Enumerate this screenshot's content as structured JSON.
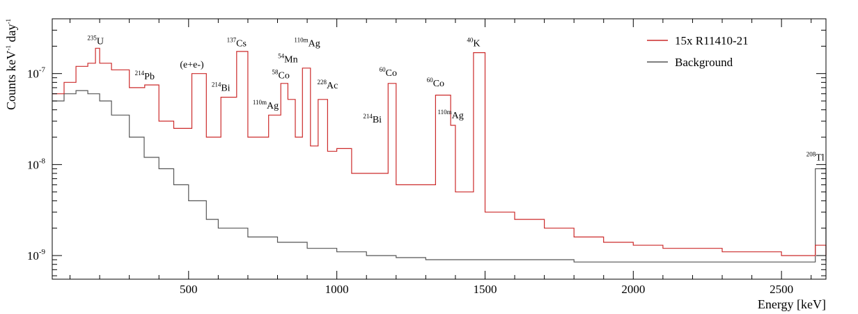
{
  "chart_data": {
    "type": "line",
    "title": "",
    "xlabel": "Energy [keV]",
    "ylabel": "Counts keV-1 day-1",
    "ylabel_parts": {
      "base1": "Counts keV",
      "exp1": "-1",
      "base2": " day",
      "exp2": "-1"
    },
    "xlim": [
      40,
      2650
    ],
    "ylim": [
      5.5e-10,
      4e-07
    ],
    "log_y": true,
    "grid": false,
    "legend_position": "top-right",
    "x_ticks": [
      500,
      1000,
      1500,
      2000,
      2500
    ],
    "x_tick_labels": [
      "500",
      "1000",
      "1500",
      "2000",
      "2500"
    ],
    "y_ticks": [
      1e-09,
      1e-08,
      1e-07
    ],
    "y_tick_labels": [
      {
        "base": "10",
        "exp": "-9"
      },
      {
        "base": "10",
        "exp": "-8"
      },
      {
        "base": "10",
        "exp": "-7"
      }
    ],
    "colors": {
      "series1": "#cc2a2a",
      "series2": "#555555"
    },
    "series": [
      {
        "name": "15x R11410-21",
        "x": [
          40,
          80,
          120,
          160,
          186,
          200,
          240,
          300,
          352,
          400,
          450,
          511,
          560,
          609,
          662,
          700,
          770,
          811,
          835,
          860,
          884,
          911,
          937,
          969,
          1000,
          1050,
          1120,
          1173,
          1200,
          1250,
          1333,
          1384,
          1400,
          1461,
          1500,
          1600,
          1700,
          1800,
          1900,
          2000,
          2100,
          2200,
          2300,
          2400,
          2500,
          2614,
          2650
        ],
        "values": [
          6e-08,
          8e-08,
          1.2e-07,
          1.3e-07,
          1.9e-07,
          1.3e-07,
          1.1e-07,
          7e-08,
          7.5e-08,
          3e-08,
          2.5e-08,
          1e-07,
          2e-08,
          5.5e-08,
          1.75e-07,
          2e-08,
          3.5e-08,
          7.8e-08,
          5.2e-08,
          2e-08,
          1.15e-07,
          1.6e-08,
          5.2e-08,
          1.4e-08,
          1.5e-08,
          8e-09,
          8e-09,
          7.8e-08,
          6e-09,
          6e-09,
          5.8e-08,
          2.7e-08,
          5e-09,
          1.7e-07,
          3e-09,
          2.5e-09,
          2e-09,
          1.6e-09,
          1.4e-09,
          1.3e-09,
          1.2e-09,
          1.2e-09,
          1.1e-09,
          1.1e-09,
          1e-09,
          1.3e-09,
          1e-09
        ]
      },
      {
        "name": "Background",
        "x": [
          40,
          80,
          120,
          160,
          200,
          240,
          300,
          350,
          400,
          450,
          500,
          560,
          600,
          700,
          800,
          900,
          1000,
          1100,
          1200,
          1300,
          1400,
          1500,
          1600,
          1700,
          1800,
          1900,
          2000,
          2100,
          2200,
          2300,
          2400,
          2500,
          2614,
          2650
        ],
        "values": [
          5e-08,
          6e-08,
          6.5e-08,
          6e-08,
          5e-08,
          3.5e-08,
          2e-08,
          1.2e-08,
          9e-09,
          6e-09,
          4e-09,
          2.5e-09,
          2e-09,
          1.6e-09,
          1.4e-09,
          1.2e-09,
          1.1e-09,
          1e-09,
          9.5e-10,
          9e-10,
          9e-10,
          9e-10,
          9e-10,
          9e-10,
          8.5e-10,
          8.5e-10,
          8.5e-10,
          8.5e-10,
          8.5e-10,
          8.5e-10,
          8.5e-10,
          8.5e-10,
          9e-09,
          8.5e-10
        ]
      }
    ],
    "annotations": [
      {
        "sup": "235",
        "text": "U",
        "x": 186,
        "y": 1.9e-07
      },
      {
        "sup": "214",
        "text": "Pb",
        "x": 352,
        "y": 7.8e-08
      },
      {
        "sup": "",
        "text": "(e+e-)",
        "x": 511,
        "y": 1.05e-07
      },
      {
        "sup": "214",
        "text": "Bi",
        "x": 609,
        "y": 5.8e-08
      },
      {
        "sup": "137",
        "text": "Cs",
        "x": 662,
        "y": 1.8e-07
      },
      {
        "sup": "58",
        "text": "Co",
        "x": 811,
        "y": 8e-08
      },
      {
        "sup": "110m",
        "text": "Ag",
        "x": 760,
        "y": 3.7e-08
      },
      {
        "sup": "54",
        "text": "Mn",
        "x": 835,
        "y": 1.2e-07
      },
      {
        "sup": "110m",
        "text": "Ag",
        "x": 900,
        "y": 1.8e-07
      },
      {
        "sup": "228",
        "text": "Ac",
        "x": 969,
        "y": 6.2e-08
      },
      {
        "sup": "60",
        "text": "Co",
        "x": 1173,
        "y": 8.5e-08
      },
      {
        "sup": "214",
        "text": "Bi",
        "x": 1120,
        "y": 2.6e-08
      },
      {
        "sup": "60",
        "text": "Co",
        "x": 1333,
        "y": 6.5e-08
      },
      {
        "sup": "110m",
        "text": "Ag",
        "x": 1384,
        "y": 2.9e-08
      },
      {
        "sup": "40",
        "text": "K",
        "x": 1461,
        "y": 1.8e-07
      },
      {
        "sup": "208",
        "text": "Tl",
        "x": 2614,
        "y": 1e-08
      }
    ]
  }
}
